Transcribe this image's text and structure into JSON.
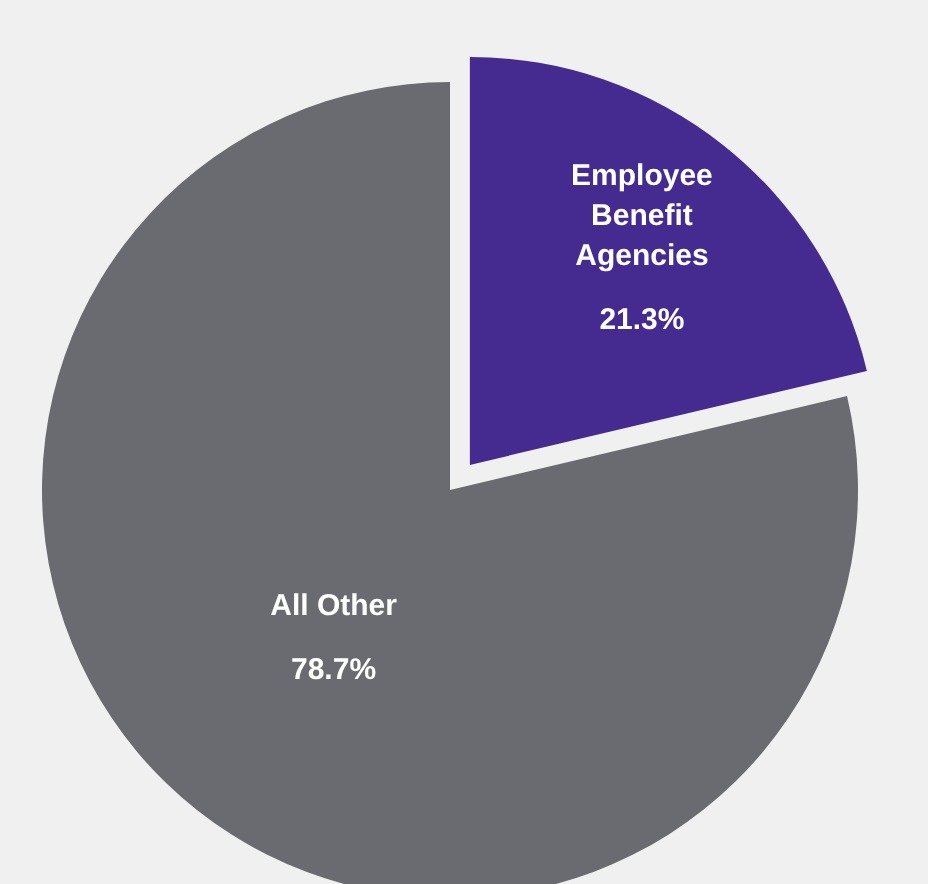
{
  "chart_data": {
    "type": "pie",
    "categories": [
      "Employee Benefit Agencies",
      "All Other"
    ],
    "values": [
      21.3,
      78.7
    ],
    "colors": [
      "#452a8f",
      "#6a6b70"
    ],
    "value_labels": [
      "21.3%",
      "78.7%"
    ]
  }
}
